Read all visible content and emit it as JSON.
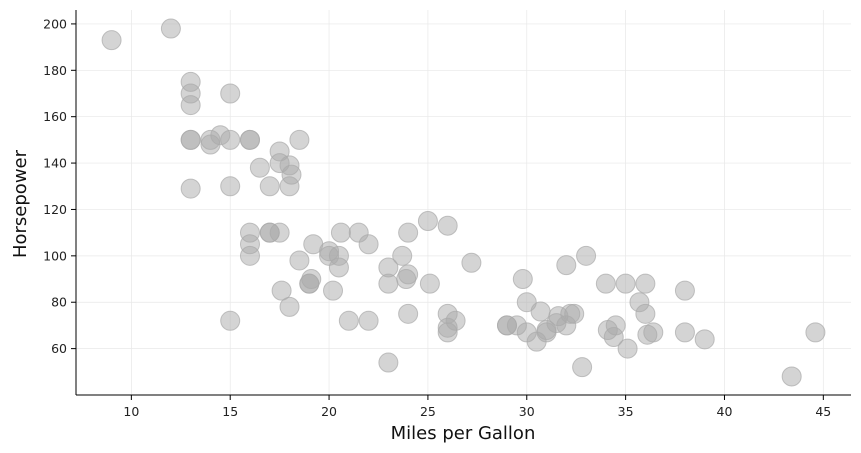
{
  "chart_data": {
    "type": "scatter",
    "title": "",
    "xlabel": "Miles per Gallon",
    "ylabel": "Horsepower",
    "xlim": [
      7.2,
      46.4
    ],
    "ylim": [
      40,
      206
    ],
    "xticks": [
      10,
      15,
      20,
      25,
      30,
      35,
      40,
      45
    ],
    "yticks": [
      60,
      80,
      100,
      120,
      140,
      160,
      180,
      200
    ],
    "grid": true,
    "legend": "none",
    "marker_color": "#a9a9a9",
    "marker_opacity": 0.5,
    "points": [
      {
        "x": 9,
        "y": 193
      },
      {
        "x": 12,
        "y": 198
      },
      {
        "x": 13,
        "y": 175
      },
      {
        "x": 13,
        "y": 170
      },
      {
        "x": 13,
        "y": 165
      },
      {
        "x": 13,
        "y": 150
      },
      {
        "x": 13,
        "y": 150
      },
      {
        "x": 13,
        "y": 129
      },
      {
        "x": 14,
        "y": 148
      },
      {
        "x": 14,
        "y": 150
      },
      {
        "x": 14.5,
        "y": 152
      },
      {
        "x": 15,
        "y": 170
      },
      {
        "x": 15,
        "y": 150
      },
      {
        "x": 15,
        "y": 130
      },
      {
        "x": 15,
        "y": 72
      },
      {
        "x": 16,
        "y": 150
      },
      {
        "x": 16,
        "y": 150
      },
      {
        "x": 16,
        "y": 110
      },
      {
        "x": 16,
        "y": 105
      },
      {
        "x": 16,
        "y": 100
      },
      {
        "x": 16.5,
        "y": 138
      },
      {
        "x": 17,
        "y": 130
      },
      {
        "x": 17,
        "y": 110
      },
      {
        "x": 17,
        "y": 110
      },
      {
        "x": 17.5,
        "y": 145
      },
      {
        "x": 17.5,
        "y": 140
      },
      {
        "x": 17.5,
        "y": 110
      },
      {
        "x": 17.6,
        "y": 85
      },
      {
        "x": 18,
        "y": 139
      },
      {
        "x": 18,
        "y": 130
      },
      {
        "x": 18.1,
        "y": 135
      },
      {
        "x": 18,
        "y": 78
      },
      {
        "x": 18.5,
        "y": 150
      },
      {
        "x": 18.5,
        "y": 98
      },
      {
        "x": 19,
        "y": 88
      },
      {
        "x": 19,
        "y": 88
      },
      {
        "x": 19.1,
        "y": 90
      },
      {
        "x": 19.2,
        "y": 105
      },
      {
        "x": 20,
        "y": 102
      },
      {
        "x": 20,
        "y": 100
      },
      {
        "x": 20.2,
        "y": 85
      },
      {
        "x": 20.5,
        "y": 100
      },
      {
        "x": 20.5,
        "y": 95
      },
      {
        "x": 20.6,
        "y": 110
      },
      {
        "x": 21,
        "y": 72
      },
      {
        "x": 21.5,
        "y": 110
      },
      {
        "x": 22,
        "y": 105
      },
      {
        "x": 22,
        "y": 72
      },
      {
        "x": 23,
        "y": 95
      },
      {
        "x": 23,
        "y": 88
      },
      {
        "x": 23,
        "y": 54
      },
      {
        "x": 23.7,
        "y": 100
      },
      {
        "x": 23.9,
        "y": 90
      },
      {
        "x": 24,
        "y": 110
      },
      {
        "x": 24,
        "y": 92
      },
      {
        "x": 24,
        "y": 75
      },
      {
        "x": 25,
        "y": 115
      },
      {
        "x": 25.1,
        "y": 88
      },
      {
        "x": 26,
        "y": 113
      },
      {
        "x": 26,
        "y": 75
      },
      {
        "x": 26,
        "y": 69
      },
      {
        "x": 26,
        "y": 67
      },
      {
        "x": 26.4,
        "y": 72
      },
      {
        "x": 27.2,
        "y": 97
      },
      {
        "x": 29,
        "y": 70
      },
      {
        "x": 29,
        "y": 70
      },
      {
        "x": 29.5,
        "y": 70
      },
      {
        "x": 29.8,
        "y": 90
      },
      {
        "x": 30,
        "y": 80
      },
      {
        "x": 30,
        "y": 67
      },
      {
        "x": 30.5,
        "y": 63
      },
      {
        "x": 30.7,
        "y": 76
      },
      {
        "x": 31,
        "y": 68
      },
      {
        "x": 31,
        "y": 67
      },
      {
        "x": 31.5,
        "y": 71
      },
      {
        "x": 31.6,
        "y": 74
      },
      {
        "x": 32,
        "y": 96
      },
      {
        "x": 32,
        "y": 70
      },
      {
        "x": 32.2,
        "y": 75
      },
      {
        "x": 32.4,
        "y": 75
      },
      {
        "x": 32.8,
        "y": 52
      },
      {
        "x": 33,
        "y": 100
      },
      {
        "x": 34,
        "y": 88
      },
      {
        "x": 34.1,
        "y": 68
      },
      {
        "x": 34.4,
        "y": 65
      },
      {
        "x": 34.5,
        "y": 70
      },
      {
        "x": 35,
        "y": 88
      },
      {
        "x": 35.1,
        "y": 60
      },
      {
        "x": 35.7,
        "y": 80
      },
      {
        "x": 36,
        "y": 88
      },
      {
        "x": 36,
        "y": 75
      },
      {
        "x": 36.1,
        "y": 66
      },
      {
        "x": 36.4,
        "y": 67
      },
      {
        "x": 38,
        "y": 85
      },
      {
        "x": 38,
        "y": 67
      },
      {
        "x": 39,
        "y": 64
      },
      {
        "x": 43.4,
        "y": 48
      },
      {
        "x": 44.6,
        "y": 67
      }
    ]
  }
}
